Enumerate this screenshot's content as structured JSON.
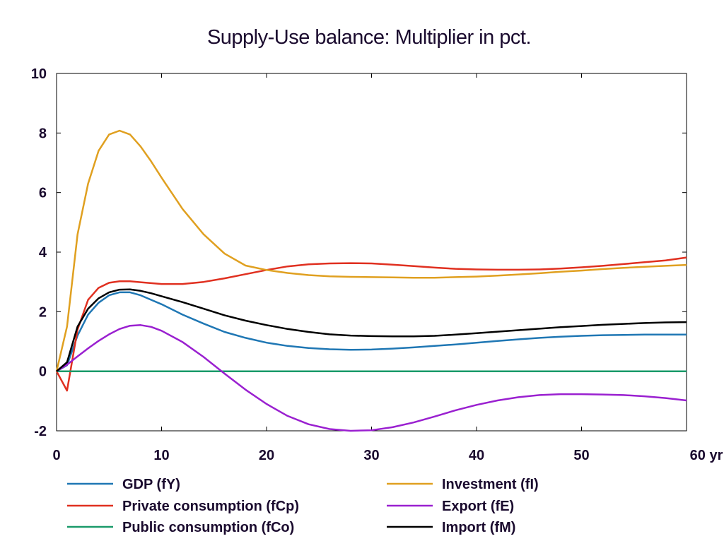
{
  "chart_data": {
    "type": "line",
    "title": "Supply-Use balance: Multiplier in pct.",
    "xlabel": "",
    "ylabel": "",
    "xlim": [
      0,
      60
    ],
    "ylim": [
      -2,
      10
    ],
    "x_ticks": [
      0,
      10,
      20,
      30,
      40,
      50,
      60
    ],
    "x_tick_labels": [
      "0",
      "10",
      "20",
      "30",
      "40",
      "50",
      "60 yr"
    ],
    "y_ticks": [
      -2,
      0,
      2,
      4,
      6,
      8,
      10
    ],
    "y_tick_labels": [
      "-2",
      "0",
      "2",
      "4",
      "6",
      "8",
      "10"
    ],
    "grid": false,
    "legend_position": "bottom",
    "x": [
      0,
      1,
      2,
      3,
      4,
      5,
      6,
      7,
      8,
      9,
      10,
      12,
      14,
      16,
      18,
      20,
      22,
      24,
      26,
      28,
      30,
      32,
      34,
      36,
      38,
      40,
      42,
      44,
      46,
      48,
      50,
      52,
      54,
      56,
      58,
      60
    ],
    "series": [
      {
        "name": "GDP (fY)",
        "color": "#1f77b4",
        "values": [
          0,
          0.2,
          1.2,
          1.9,
          2.3,
          2.55,
          2.65,
          2.65,
          2.55,
          2.4,
          2.25,
          1.9,
          1.6,
          1.32,
          1.12,
          0.96,
          0.85,
          0.78,
          0.74,
          0.72,
          0.73,
          0.76,
          0.8,
          0.85,
          0.9,
          0.96,
          1.02,
          1.07,
          1.12,
          1.16,
          1.19,
          1.21,
          1.22,
          1.23,
          1.23,
          1.23
        ]
      },
      {
        "name": "Private consumption (fCp)",
        "color": "#e03020",
        "values": [
          0,
          -0.65,
          1.4,
          2.4,
          2.8,
          2.97,
          3.02,
          3.02,
          2.99,
          2.96,
          2.93,
          2.93,
          3.0,
          3.12,
          3.26,
          3.4,
          3.52,
          3.59,
          3.62,
          3.63,
          3.62,
          3.58,
          3.53,
          3.48,
          3.44,
          3.42,
          3.41,
          3.41,
          3.42,
          3.45,
          3.49,
          3.54,
          3.6,
          3.66,
          3.72,
          3.82
        ]
      },
      {
        "name": "Public consumption (fCo)",
        "color": "#1a9a6a",
        "values": [
          0,
          0,
          0,
          0,
          0,
          0,
          0,
          0,
          0,
          0,
          0,
          0,
          0,
          0,
          0,
          0,
          0,
          0,
          0,
          0,
          0,
          0,
          0,
          0,
          0,
          0,
          0,
          0,
          0,
          0,
          0,
          0,
          0,
          0,
          0,
          0
        ]
      },
      {
        "name": "Investment (fI)",
        "color": "#e0a020",
        "values": [
          0,
          1.5,
          4.6,
          6.3,
          7.4,
          7.95,
          8.08,
          7.95,
          7.55,
          7.05,
          6.5,
          5.45,
          4.6,
          3.95,
          3.55,
          3.4,
          3.3,
          3.23,
          3.19,
          3.17,
          3.16,
          3.15,
          3.14,
          3.14,
          3.16,
          3.18,
          3.21,
          3.25,
          3.29,
          3.34,
          3.38,
          3.43,
          3.47,
          3.51,
          3.54,
          3.57
        ]
      },
      {
        "name": "Export (fE)",
        "color": "#9a20d0",
        "values": [
          0,
          0.22,
          0.5,
          0.77,
          1.02,
          1.24,
          1.42,
          1.53,
          1.55,
          1.49,
          1.36,
          0.98,
          0.48,
          -0.08,
          -0.62,
          -1.1,
          -1.5,
          -1.78,
          -1.94,
          -2.0,
          -1.98,
          -1.88,
          -1.72,
          -1.52,
          -1.31,
          -1.13,
          -0.98,
          -0.87,
          -0.8,
          -0.77,
          -0.77,
          -0.78,
          -0.8,
          -0.84,
          -0.9,
          -0.98
        ]
      },
      {
        "name": "Import (fM)",
        "color": "#000000",
        "values": [
          0,
          0.3,
          1.5,
          2.1,
          2.45,
          2.65,
          2.74,
          2.75,
          2.7,
          2.62,
          2.52,
          2.32,
          2.1,
          1.88,
          1.7,
          1.55,
          1.42,
          1.32,
          1.24,
          1.2,
          1.18,
          1.17,
          1.17,
          1.19,
          1.23,
          1.28,
          1.33,
          1.38,
          1.43,
          1.48,
          1.52,
          1.56,
          1.59,
          1.62,
          1.64,
          1.65
        ]
      }
    ]
  }
}
